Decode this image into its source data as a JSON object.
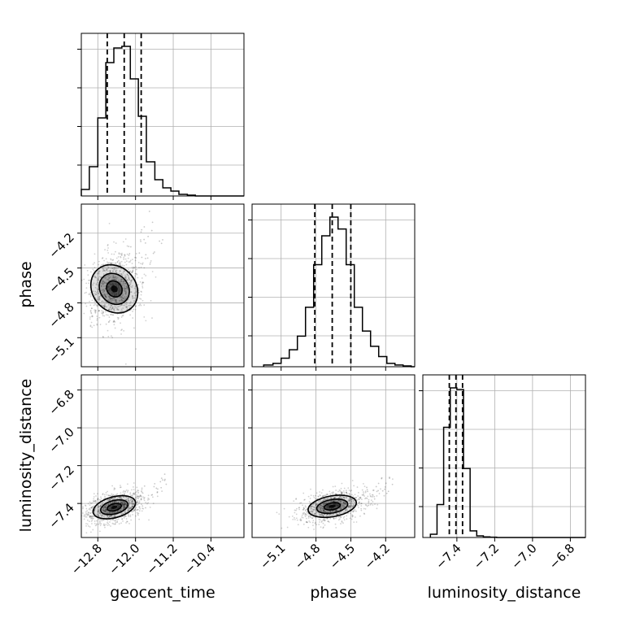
{
  "parameters": [
    "geocent_time",
    "phase",
    "luminosity_distance"
  ],
  "labels": {
    "geocent_time": "geocent_time",
    "phase": "phase",
    "luminosity_distance": "luminosity_distance"
  },
  "colors": {
    "line": "#000000",
    "grid": "#b0b0b0",
    "quantile": "#000000"
  },
  "chart_data": {
    "type": "corner",
    "parameters": [
      "geocent_time",
      "phase",
      "luminosity_distance"
    ],
    "ranges": {
      "geocent_time": [
        -13.15,
        -9.7
      ],
      "phase": [
        -5.35,
        -3.95
      ],
      "luminosity_distance": [
        -7.58,
        -6.72
      ]
    },
    "ticks": {
      "geocent_time": {
        "values": [
          -12.8,
          -12.0,
          -11.2,
          -10.4
        ],
        "labels": [
          "−12.8",
          "−12.0",
          "−11.2",
          "−10.4"
        ]
      },
      "phase": {
        "values": [
          -5.1,
          -4.8,
          -4.5,
          -4.2
        ],
        "labels": [
          "−5.1",
          "−4.8",
          "−4.5",
          "−4.2"
        ]
      },
      "luminosity_distance": {
        "values": [
          -7.4,
          -7.2,
          -7.0,
          -6.8
        ],
        "labels": [
          "−7.4",
          "−7.2",
          "−7.0",
          "−6.8"
        ]
      }
    },
    "quantiles": {
      "geocent_time": [
        -12.6,
        -12.24,
        -11.88
      ],
      "phase": [
        -4.81,
        -4.66,
        -4.5
      ],
      "luminosity_distance": [
        -7.44,
        -7.405,
        -7.37
      ]
    },
    "histograms": {
      "geocent_time": {
        "edges": [
          -13.15,
          -12.98,
          -12.8,
          -12.63,
          -12.46,
          -12.29,
          -12.11,
          -11.94,
          -11.77,
          -11.59,
          -11.42,
          -11.25,
          -11.08,
          -10.9,
          -10.73,
          -10.56,
          -10.39
        ],
        "counts": [
          0.04,
          0.18,
          0.48,
          0.82,
          0.91,
          0.92,
          0.72,
          0.49,
          0.21,
          0.1,
          0.05,
          0.03,
          0.01,
          0.005,
          0.0,
          0.0
        ]
      },
      "phase": {
        "edges": [
          -5.25,
          -5.17,
          -5.1,
          -5.03,
          -4.96,
          -4.89,
          -4.82,
          -4.75,
          -4.68,
          -4.61,
          -4.54,
          -4.47,
          -4.4,
          -4.33,
          -4.26,
          -4.19,
          -4.12,
          -4.05,
          -3.98
        ],
        "counts": [
          0.01,
          0.02,
          0.05,
          0.1,
          0.18,
          0.35,
          0.6,
          0.77,
          0.88,
          0.81,
          0.6,
          0.35,
          0.21,
          0.12,
          0.06,
          0.02,
          0.01,
          0.005
        ]
      },
      "luminosity_distance": {
        "edges": [
          -7.54,
          -7.505,
          -7.47,
          -7.435,
          -7.4,
          -7.365,
          -7.33,
          -7.295,
          -7.26,
          -7.225,
          -7.19
        ],
        "counts": [
          0.02,
          0.2,
          0.67,
          0.91,
          0.9,
          0.42,
          0.04,
          0.01,
          0.004,
          0.002
        ]
      }
    },
    "pairs": [
      {
        "x": "geocent_time",
        "y": "phase",
        "center": [
          -12.45,
          -4.68
        ],
        "sigma_major": [
          0.22,
          0.1
        ],
        "angle_deg": 40,
        "scatter_x_range": [
          -13.0,
          -9.9
        ],
        "scatter_y_range": [
          -5.2,
          -4.0
        ]
      },
      {
        "x": "geocent_time",
        "y": "luminosity_distance",
        "center": [
          -12.45,
          -7.42
        ],
        "sigma_major": [
          0.22,
          0.025
        ],
        "angle_deg": 15,
        "scatter_x_range": [
          -13.0,
          -9.9
        ],
        "scatter_y_range": [
          -7.52,
          -6.8
        ]
      },
      {
        "x": "phase",
        "y": "luminosity_distance",
        "center": [
          -4.66,
          -7.415
        ],
        "sigma_major": [
          0.1,
          0.025
        ],
        "angle_deg": 10,
        "scatter_x_range": [
          -5.25,
          -4.0
        ],
        "scatter_y_range": [
          -7.52,
          -6.95
        ]
      }
    ],
    "grid": true
  }
}
